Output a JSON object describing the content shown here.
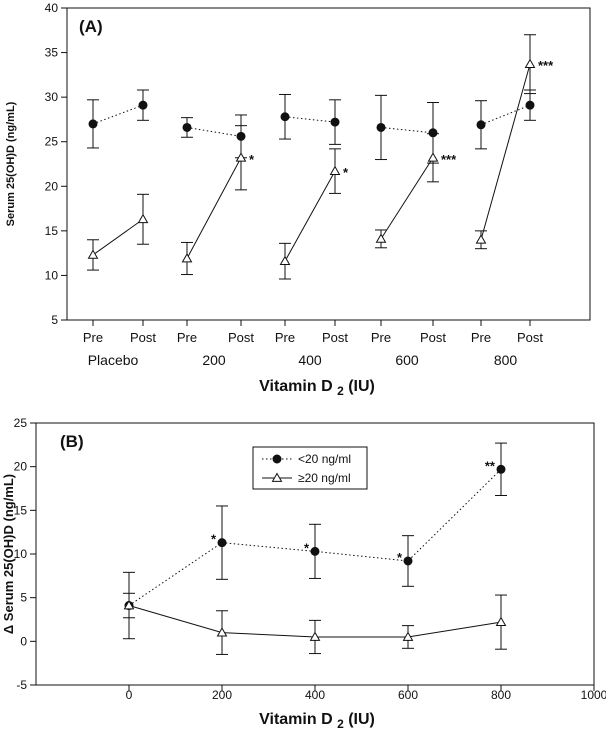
{
  "chart_data": [
    {
      "panel_label": "(A)",
      "type": "line",
      "ylabel": "Serum 25(OH)D (ng/mL)",
      "xlabel": "Vitamin D2 (IU)",
      "xlabel_main": "Vitamin D",
      "xlabel_sub": "2",
      "xlabel_unit": "(IU)",
      "ylim": [
        5,
        40
      ],
      "yticks": [
        5,
        10,
        15,
        20,
        25,
        30,
        35,
        40
      ],
      "ytick_labels": [
        "5",
        "10",
        "15",
        "20",
        "25",
        "30",
        "35",
        "40"
      ],
      "groups": [
        "Placebo",
        "200",
        "400",
        "600",
        "800"
      ],
      "timepoints": [
        "Pre",
        "Post"
      ],
      "series": [
        {
          "name": "<20 ng/ml",
          "marker": "filled-circle",
          "line": "dotted",
          "pre": [
            27.0,
            26.6,
            27.8,
            26.6,
            26.9
          ],
          "post": [
            29.1,
            25.6,
            27.2,
            26.0,
            29.1
          ],
          "pre_err": [
            2.7,
            1.1,
            2.5,
            3.6,
            2.7
          ],
          "post_err": [
            1.7,
            2.4,
            2.5,
            3.4,
            1.7
          ]
        },
        {
          "name": ">=20 ng/ml",
          "marker": "open-triangle",
          "line": "solid",
          "pre": [
            12.3,
            11.9,
            11.6,
            14.1,
            14.0
          ],
          "post": [
            16.3,
            23.2,
            21.7,
            23.2,
            33.7
          ],
          "pre_err": [
            1.7,
            1.8,
            2.0,
            1.0,
            1.0
          ],
          "post_err": [
            2.8,
            3.6,
            2.5,
            2.7,
            3.3
          ]
        }
      ],
      "significance": [
        "",
        "*",
        "*",
        "***",
        "***"
      ]
    },
    {
      "panel_label": "(B)",
      "type": "line",
      "ylabel": "Δ Serum 25(OH)D (ng/mL)",
      "xlabel": "Vitamin D2 (IU)",
      "xlabel_main": "Vitamin D",
      "xlabel_sub": "2",
      "xlabel_unit": "(IU)",
      "xlim": [
        -200,
        1000
      ],
      "ylim": [
        -5,
        25
      ],
      "xticks": [
        0,
        200,
        400,
        600,
        800,
        1000
      ],
      "xtick_labels": [
        "0",
        "200",
        "400",
        "600",
        "800",
        "1000"
      ],
      "yticks": [
        -5,
        0,
        5,
        10,
        15,
        20,
        25
      ],
      "ytick_labels": [
        "-5",
        "0",
        "5",
        "10",
        "15",
        "20",
        "25"
      ],
      "x": [
        0,
        200,
        400,
        600,
        800
      ],
      "legend_position": "top-center",
      "series": [
        {
          "name": "<20 ng/ml",
          "legend_label": "<20 ng/ml",
          "marker": "filled-circle",
          "line": "dotted",
          "values": [
            4.1,
            11.3,
            10.3,
            9.2,
            19.7
          ],
          "err": [
            3.8,
            4.2,
            3.1,
            2.9,
            3.0
          ],
          "significance": [
            "",
            "*",
            "*",
            "*",
            "**"
          ]
        },
        {
          "name": ">=20 ng/ml",
          "legend_label": "≥20 ng/ml",
          "marker": "open-triangle",
          "line": "solid",
          "values": [
            4.1,
            1.0,
            0.5,
            0.5,
            2.2
          ],
          "err": [
            1.4,
            2.5,
            1.9,
            1.3,
            3.1
          ],
          "significance": [
            "",
            "",
            "",
            "",
            ""
          ]
        }
      ]
    }
  ]
}
